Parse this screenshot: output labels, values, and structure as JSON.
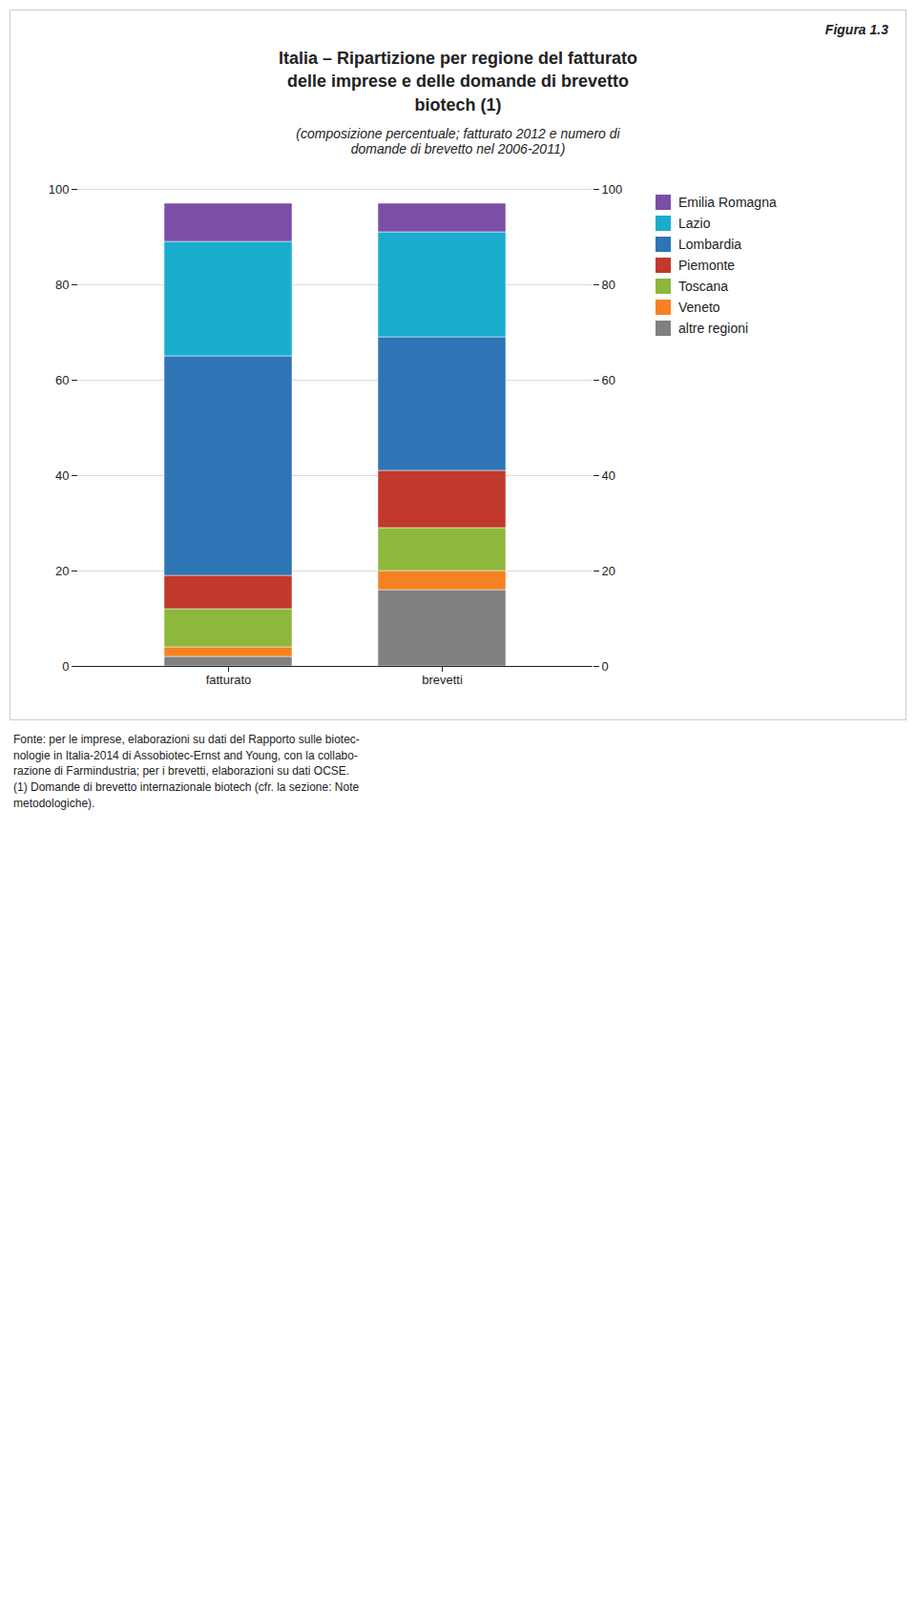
{
  "chart_data": {
    "type": "bar",
    "stacked": true,
    "title": "Italia – Ripartizione per regione del fatturato\ndelle imprese e delle domande di brevetto\nbiotech (1)",
    "subtitle": "(composizione percentuale; fatturato 2012 e numero di\ndomande di brevetto nel 2006-2011)",
    "annotations": [
      "Figura 1.3",
      "Fonte: per le imprese, elaborazioni su dati del Rapporto sulle biotec-\nnologie in Italia-2014 di Assobiotec-Ernst and Young, con la collabo-\nrazione di Farmindustria; per i brevetti, elaborazioni su dati OCSE.\n(1) Domande di brevetto internazionale biotech (cfr. la sezione: Note\nmetodologiche)."
    ],
    "categories": [
      "fatturato",
      "brevetti"
    ],
    "series": [
      {
        "name": "altre regioni",
        "color": "#808080",
        "values": [
          2,
          16
        ]
      },
      {
        "name": "Veneto",
        "color": "#F58220",
        "values": [
          2,
          4
        ]
      },
      {
        "name": "Toscana",
        "color": "#8DB83B",
        "values": [
          8,
          9
        ]
      },
      {
        "name": "Piemonte",
        "color": "#C0392B",
        "values": [
          7,
          12
        ]
      },
      {
        "name": "Lombardia",
        "color": "#2E75B6",
        "values": [
          46,
          28
        ]
      },
      {
        "name": "Lazio",
        "color": "#1AADCE",
        "values": [
          24,
          22
        ]
      },
      {
        "name": "Emilia Romagna",
        "color": "#7B4FA6",
        "values": [
          8,
          6
        ]
      }
    ],
    "ylim": [
      0,
      100
    ],
    "yticks": [
      0,
      20,
      40,
      60,
      80,
      100
    ],
    "y2lim": [
      0,
      100
    ],
    "y2ticks": [
      0,
      20,
      40,
      60,
      80,
      100
    ],
    "grid": true,
    "legend": "right"
  }
}
